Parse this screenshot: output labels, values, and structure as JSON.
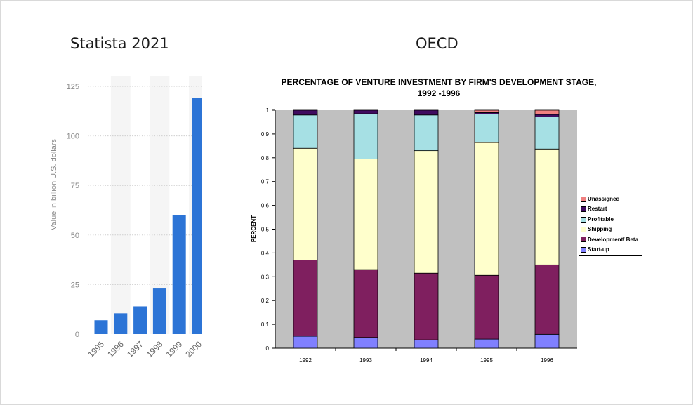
{
  "left_panel": {
    "title": "Statista 2021"
  },
  "right_panel": {
    "title": "OECD",
    "chart_title_line1": "PERCENTAGE OF VENTURE INVESTMENT BY FIRM'S DEVELOPMENT STAGE,",
    "chart_title_line2": "1992 -1996"
  },
  "colors": {
    "statista_bar": "#2c74d6",
    "oecd_plot_bg": "#c0c0c0",
    "start_up": "#8080ff",
    "development_beta": "#7f1f5f",
    "shipping": "#ffffcc",
    "profitable": "#a6e0e4",
    "restart": "#3f0a5f",
    "unassigned": "#f08080"
  },
  "chart_data": [
    {
      "type": "bar",
      "categories": [
        "1995",
        "1996",
        "1997",
        "1998",
        "1999",
        "2000"
      ],
      "values": [
        7,
        10.5,
        14,
        23,
        60,
        119
      ],
      "ylabel": "Value in billion U.S. dollars",
      "yticks": [
        "0",
        "25",
        "50",
        "75",
        "100",
        "125"
      ],
      "ylim": [
        0,
        125
      ],
      "grid": true
    },
    {
      "type": "bar",
      "stacked": true,
      "categories": [
        "1992",
        "1993",
        "1994",
        "1995",
        "1996"
      ],
      "ylabel": "PERCENT",
      "yticks": [
        "0",
        "0.1",
        "0.2",
        "0.3",
        "0.4",
        "0.5",
        "0.6",
        "0.7",
        "0.8",
        "0.9",
        "1"
      ],
      "ylim": [
        0,
        1
      ],
      "legend_position": "right",
      "series": [
        {
          "name": "Start-up",
          "color_key": "start_up",
          "values": [
            0.05,
            0.045,
            0.035,
            0.038,
            0.058
          ]
        },
        {
          "name": "Development/ Beta",
          "color_key": "development_beta",
          "values": [
            0.32,
            0.285,
            0.28,
            0.268,
            0.292
          ]
        },
        {
          "name": "Shipping",
          "color_key": "shipping",
          "values": [
            0.47,
            0.465,
            0.515,
            0.558,
            0.487
          ]
        },
        {
          "name": "Profitable",
          "color_key": "profitable",
          "values": [
            0.14,
            0.19,
            0.15,
            0.12,
            0.135
          ]
        },
        {
          "name": "Restart",
          "color_key": "restart",
          "values": [
            0.02,
            0.015,
            0.02,
            0.006,
            0.01
          ]
        },
        {
          "name": "Unassigned",
          "color_key": "unassigned",
          "values": [
            0,
            0,
            0,
            0.01,
            0.018
          ]
        }
      ]
    }
  ]
}
